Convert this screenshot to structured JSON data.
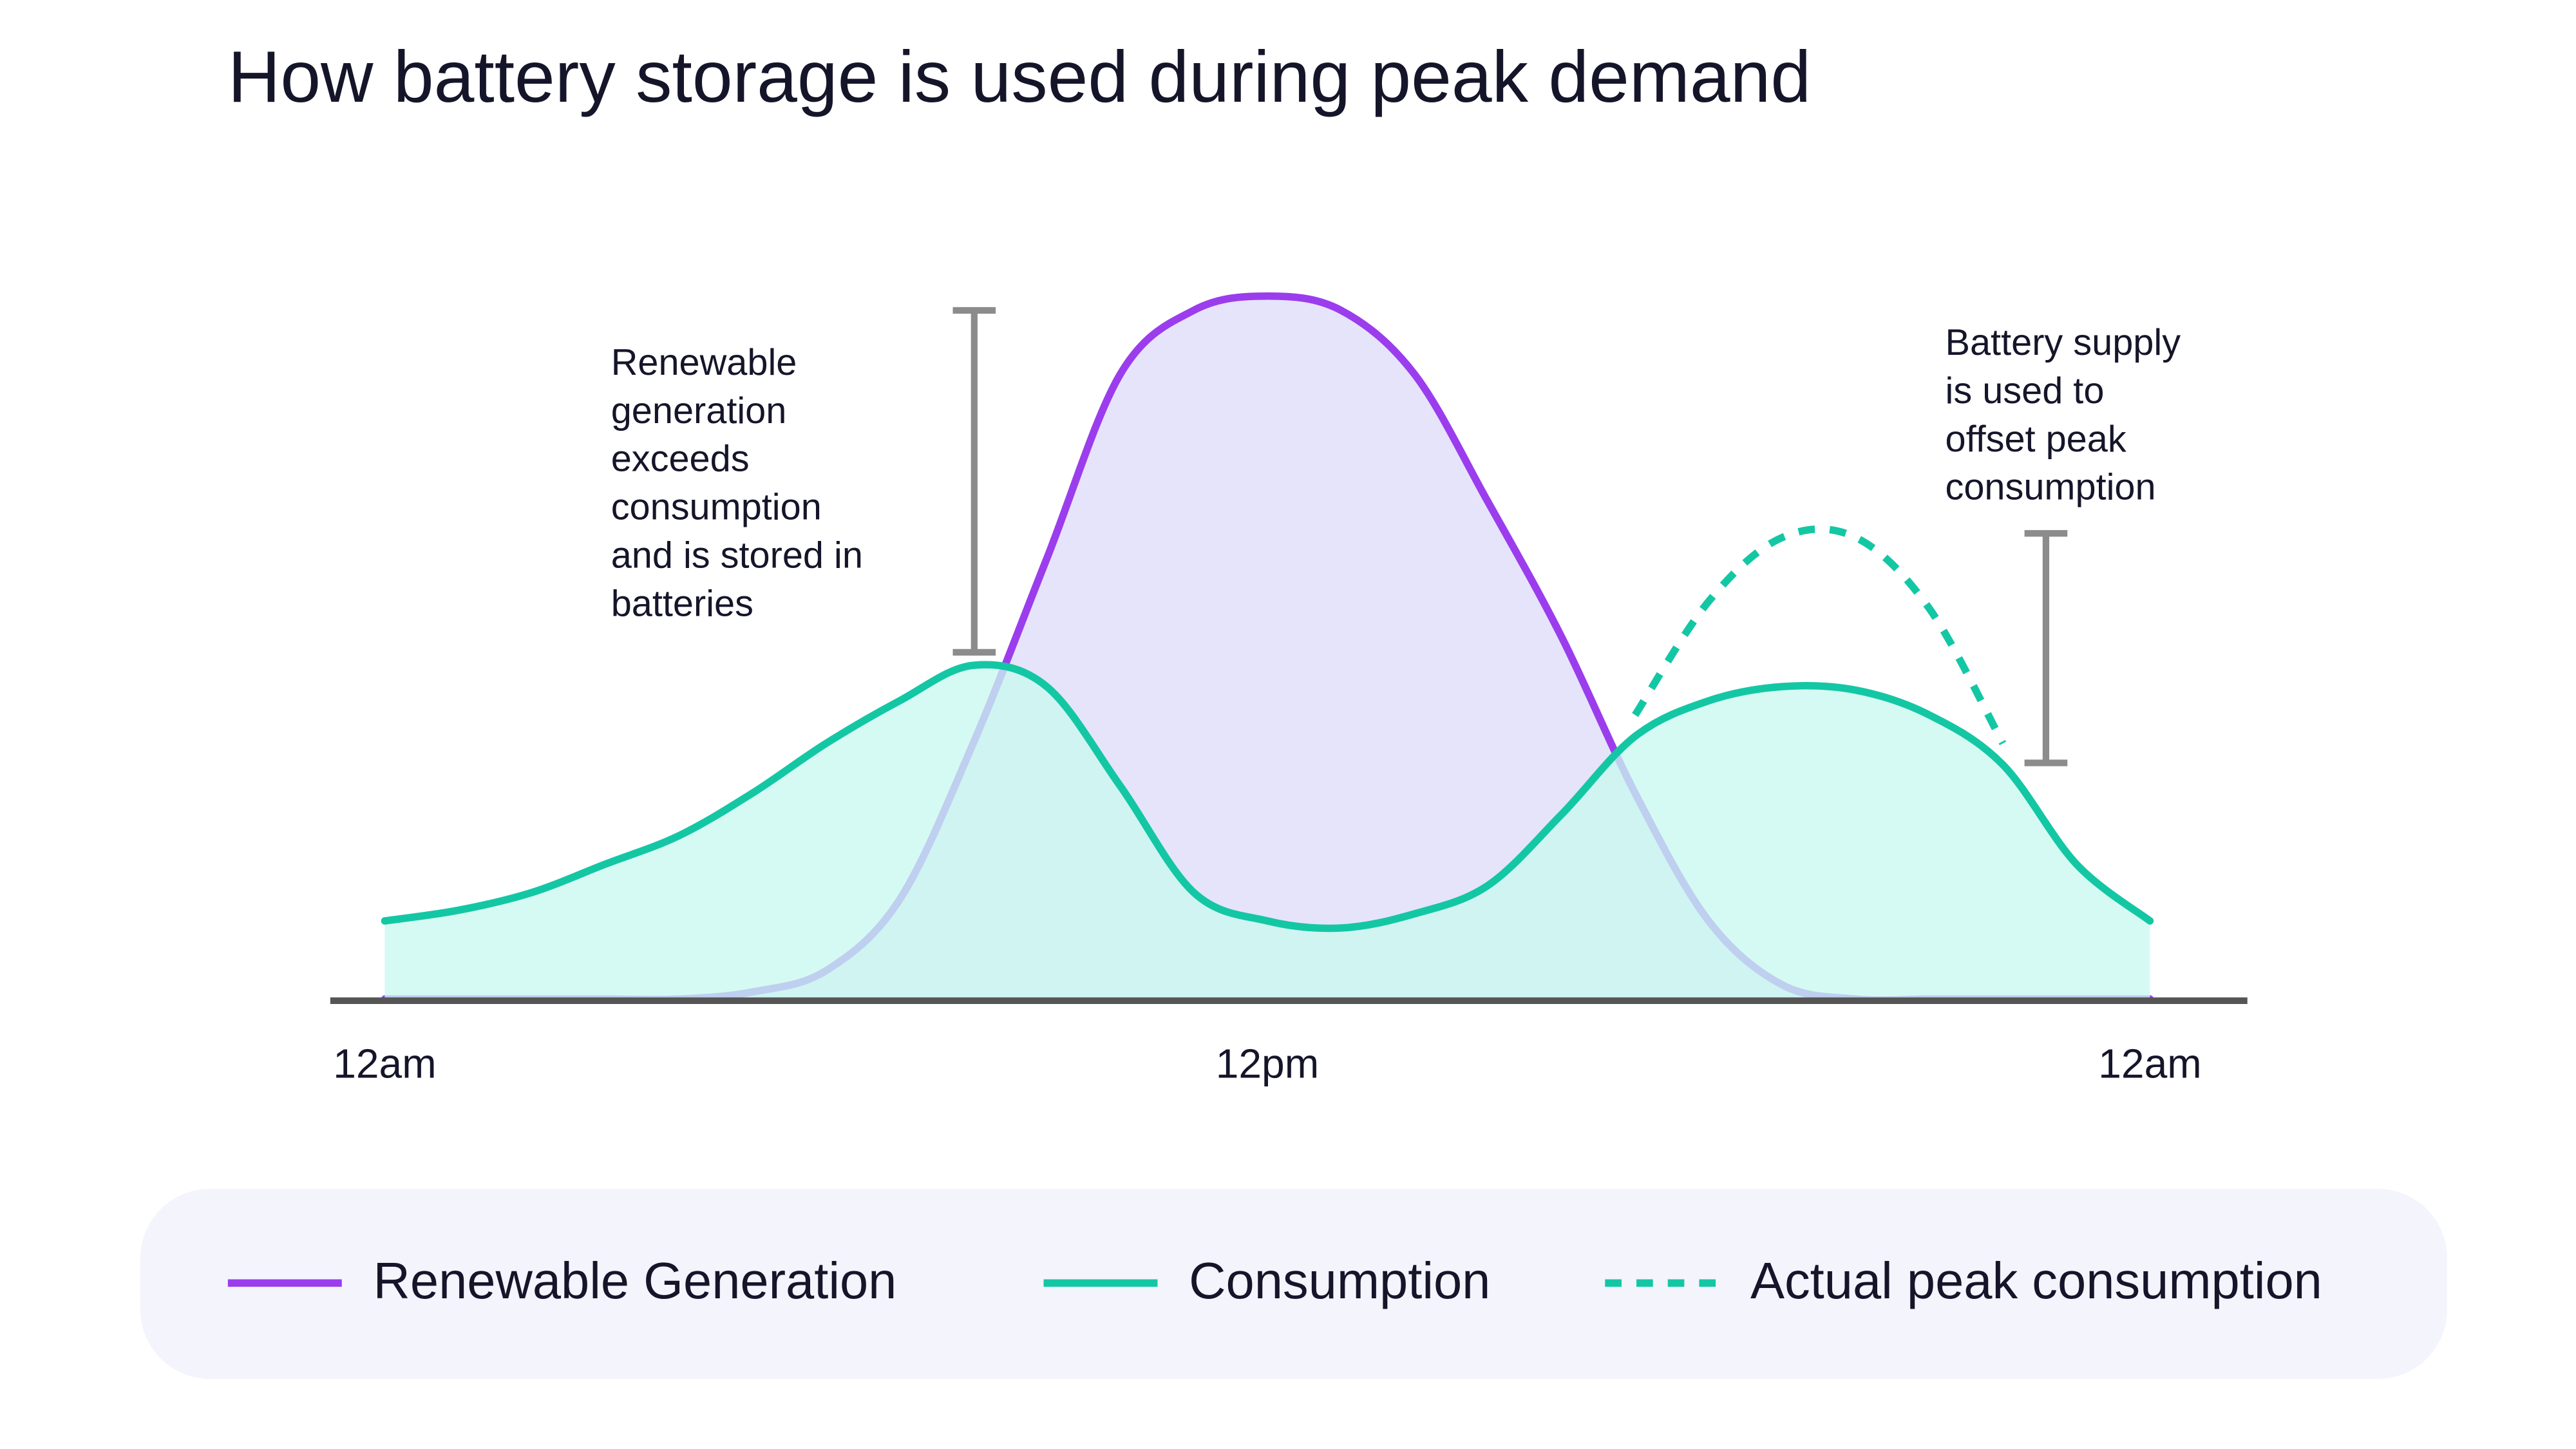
{
  "chart_data": {
    "type": "line",
    "title": "How battery storage is used during peak demand",
    "x": [
      0,
      1,
      2,
      3,
      4,
      5,
      6,
      7,
      8,
      9,
      10,
      11,
      12,
      13,
      14,
      15,
      16,
      17,
      18,
      19,
      20,
      21,
      22,
      23,
      24
    ],
    "xlim": [
      0,
      24
    ],
    "xticks": [
      {
        "value": 0,
        "label": "12am"
      },
      {
        "value": 12,
        "label": "12pm"
      },
      {
        "value": 24,
        "label": "12am"
      }
    ],
    "ylim": [
      0,
      100
    ],
    "series": [
      {
        "name": "Renewable Generation",
        "color": "#9b3ded",
        "fill": "#e5e4fb",
        "values": [
          0,
          0,
          0,
          0,
          0,
          1,
          4,
          14,
          36,
          62,
          88,
          97,
          99,
          97,
          88,
          70,
          51,
          29,
          11,
          2,
          0,
          0,
          0,
          0,
          0
        ]
      },
      {
        "name": "Consumption",
        "color": "#14c7a4",
        "fill": "#c9f9ef",
        "values": [
          11,
          12.5,
          15,
          19,
          23,
          29,
          36,
          42,
          47,
          44,
          30,
          15,
          11,
          10,
          12,
          16,
          26,
          37,
          42,
          44,
          43.5,
          40,
          33,
          19,
          11
        ]
      },
      {
        "name": "Actual peak consumption",
        "color": "#14c7a4",
        "dashed": true,
        "values": [
          null,
          null,
          null,
          null,
          null,
          null,
          null,
          null,
          null,
          null,
          null,
          null,
          null,
          null,
          null,
          null,
          null,
          40,
          56,
          65,
          65,
          55,
          36,
          null,
          null
        ]
      }
    ],
    "annotations": [
      {
        "lines": [
          "Renewable",
          "generation",
          "exceeds",
          "consumption",
          "and is stored in",
          "batteries"
        ]
      },
      {
        "lines": [
          "Battery supply",
          "is used to",
          "offset peak",
          "consumption"
        ]
      }
    ]
  }
}
